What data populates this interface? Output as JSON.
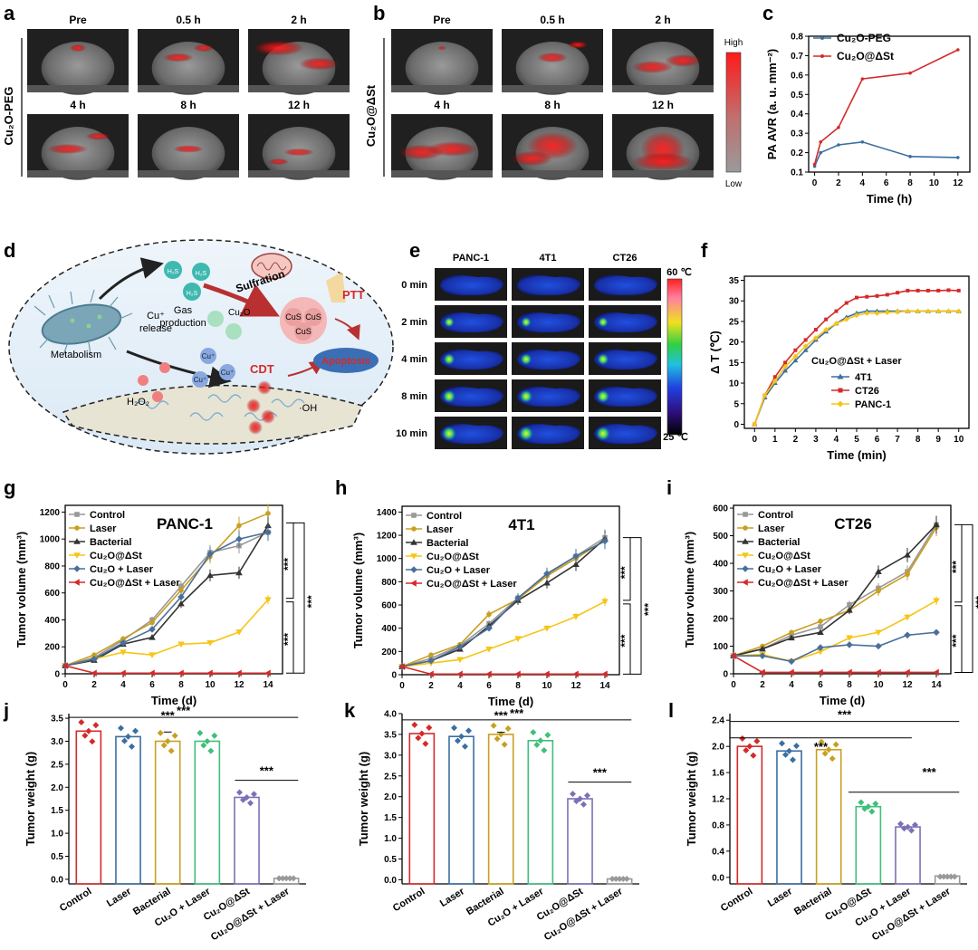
{
  "panels": {
    "a": {
      "letter": "a",
      "row_label": "Cu₂O-PEG",
      "times": [
        "Pre",
        "0.5 h",
        "2 h",
        "4 h",
        "8 h",
        "12 h"
      ]
    },
    "b": {
      "letter": "b",
      "row_label": "Cu₂O@ΔSt",
      "times": [
        "Pre",
        "0.5 h",
        "2 h",
        "4 h",
        "8 h",
        "12 h"
      ]
    },
    "ab_scale": {
      "high": "High",
      "low": "Low"
    },
    "d": {
      "letter": "d",
      "labels": {
        "h2s": "H₂S",
        "gas": "Gas",
        "production": "production",
        "sulfration": "Sulfration",
        "ptt": "PTT",
        "cu2o": "Cu₂O",
        "cus": "CuS",
        "cu_plus": "Cu⁺",
        "cu_release_1": "Cu⁺",
        "cu_release_2": "release",
        "metabolism": "Metabolism",
        "cdt": "CDT",
        "apoptosis": "Apoptosis",
        "h2o2": "H₂O₂",
        "oh": "·OH"
      }
    },
    "e": {
      "letter": "e",
      "columns": [
        "PANC-1",
        "4T1",
        "CT26"
      ],
      "rows": [
        "0 min",
        "2 min",
        "4 min",
        "8 min",
        "10 min"
      ],
      "scale_high": "60 ℃",
      "scale_low": "25 ℃"
    },
    "j": {
      "letter": "j",
      "ylabel": "Tumor weight (g)",
      "sig": [
        "***",
        "***",
        "***"
      ]
    },
    "k": {
      "letter": "k",
      "ylabel": "Tumor weight (g)",
      "sig": [
        "***",
        "***",
        "***"
      ]
    },
    "l": {
      "letter": "l",
      "ylabel": "Tumor weight (g)",
      "sig": [
        "***",
        "***",
        "***"
      ]
    }
  },
  "colors": {
    "red": "#d42a2a",
    "blue": "#3b6fa0",
    "gold": "#c8a020",
    "green": "#3fbf7a",
    "purple": "#7d70b5",
    "grey": "#999999",
    "dark": "#333333",
    "yellow": "#f5c518",
    "steel": "#4a6f9a"
  },
  "chart_data": [
    {
      "id": "c",
      "type": "line",
      "title": "",
      "xlabel": "Time (h)",
      "ylabel": "PA AVR (a. u. mm⁻²)",
      "xlim": [
        -0.5,
        13
      ],
      "ylim": [
        0.1,
        0.8
      ],
      "xticks": [
        0,
        2,
        4,
        6,
        8,
        10,
        12
      ],
      "yticks": [
        0.1,
        0.2,
        0.3,
        0.4,
        0.5,
        0.6,
        0.7,
        0.8
      ],
      "series": [
        {
          "name": "Cu₂O-PEG",
          "color": "#3b6fa0",
          "x": [
            0,
            0.5,
            2,
            4,
            8,
            12
          ],
          "y": [
            0.13,
            0.2,
            0.24,
            0.255,
            0.18,
            0.175
          ]
        },
        {
          "name": "Cu₂O@ΔSt",
          "color": "#d42a2a",
          "x": [
            0,
            0.5,
            2,
            4,
            8,
            12
          ],
          "y": [
            0.14,
            0.255,
            0.33,
            0.58,
            0.61,
            0.73
          ]
        }
      ]
    },
    {
      "id": "f",
      "type": "line",
      "title": "",
      "xlabel": "Time (min)",
      "ylabel": "Δ T (℃)",
      "legend_title": "Cu₂O@ΔSt  + Laser",
      "xlim": [
        -0.5,
        10.5
      ],
      "ylim": [
        -1,
        36
      ],
      "xticks": [
        0,
        1,
        2,
        3,
        4,
        5,
        6,
        7,
        8,
        9,
        10
      ],
      "yticks": [
        0,
        5,
        10,
        15,
        20,
        25,
        30,
        35
      ],
      "x": [
        0,
        0.5,
        1,
        1.5,
        2,
        2.5,
        3,
        3.5,
        4,
        4.5,
        5,
        5.5,
        6,
        6.5,
        7,
        7.5,
        8,
        8.5,
        9,
        9.5,
        10
      ],
      "series": [
        {
          "name": "4T1",
          "color": "#3b6fa0",
          "marker": "triangle",
          "y": [
            0,
            6.5,
            10,
            13,
            15.5,
            18,
            20.5,
            22.5,
            24.5,
            26,
            27,
            27.5,
            27.5,
            27.5,
            27.5,
            27.5,
            27.5,
            27.5,
            27.5,
            27.5,
            27.5
          ]
        },
        {
          "name": "CT26",
          "color": "#d42a2a",
          "marker": "square",
          "y": [
            0,
            7,
            11.5,
            15,
            18,
            20.5,
            23,
            25.5,
            27.5,
            29.5,
            30.8,
            31,
            31.2,
            31.5,
            32,
            32.5,
            32.5,
            32.5,
            32.5,
            32.6,
            32.5
          ]
        },
        {
          "name": "PANC-1",
          "color": "#f5c518",
          "marker": "diamond",
          "y": [
            0,
            7,
            10.5,
            14,
            16.5,
            19,
            21,
            23,
            24.5,
            25.5,
            26.5,
            27,
            27,
            27.2,
            27.3,
            27.5,
            27.5,
            27.5,
            27.5,
            27.5,
            27.5
          ]
        }
      ]
    },
    {
      "id": "g",
      "type": "line",
      "title": "PANC-1",
      "xlabel": "Time (d)",
      "ylabel": "Tumor volume (mm³)",
      "xlim": [
        0,
        15
      ],
      "ylim": [
        0,
        1250
      ],
      "xticks": [
        0,
        2,
        4,
        6,
        8,
        10,
        12,
        14
      ],
      "yticks": [
        0,
        200,
        400,
        600,
        800,
        1000,
        1200
      ],
      "x": [
        0,
        2,
        4,
        6,
        8,
        10,
        12,
        14
      ],
      "sig": [
        "***",
        "***",
        "***"
      ],
      "series": [
        {
          "name": "Control",
          "color": "#999999",
          "marker": "square",
          "y": [
            60,
            120,
            250,
            400,
            650,
            900,
            950,
            1050
          ]
        },
        {
          "name": "Laser",
          "color": "#c8a020",
          "marker": "circle",
          "y": [
            60,
            140,
            260,
            380,
            620,
            870,
            1100,
            1190
          ]
        },
        {
          "name": "Bacterial",
          "color": "#333333",
          "marker": "triangle",
          "y": [
            60,
            100,
            220,
            270,
            520,
            730,
            750,
            1100
          ]
        },
        {
          "name": "Cu₂O@ΔSt",
          "color": "#f5c518",
          "marker": "triangle-down",
          "y": [
            60,
            110,
            160,
            140,
            220,
            230,
            310,
            550
          ]
        },
        {
          "name": "Cu₂O + Laser",
          "color": "#4a6f9a",
          "marker": "diamond",
          "y": [
            60,
            110,
            230,
            330,
            570,
            890,
            1000,
            1050
          ]
        },
        {
          "name": "Cu₂O@ΔSt + Laser",
          "color": "#d42a2a",
          "marker": "triangle-left",
          "y": [
            60,
            5,
            5,
            5,
            5,
            5,
            5,
            5
          ]
        }
      ]
    },
    {
      "id": "h",
      "type": "line",
      "title": "4T1",
      "xlabel": "Time (d)",
      "ylabel": "Tumor volume (mm³)",
      "xlim": [
        0,
        15
      ],
      "ylim": [
        0,
        1450
      ],
      "xticks": [
        0,
        2,
        4,
        6,
        8,
        10,
        12,
        14
      ],
      "yticks": [
        0,
        200,
        400,
        600,
        800,
        1000,
        1200,
        1400
      ],
      "x": [
        0,
        2,
        4,
        6,
        8,
        10,
        12,
        14
      ],
      "sig": [
        "***",
        "***",
        "***"
      ],
      "series": [
        {
          "name": "Control",
          "color": "#999999",
          "marker": "square",
          "y": [
            70,
            140,
            250,
            440,
            660,
            860,
            1020,
            1180
          ]
        },
        {
          "name": "Laser",
          "color": "#c8a020",
          "marker": "circle",
          "y": [
            70,
            170,
            260,
            520,
            650,
            850,
            1000,
            1160
          ]
        },
        {
          "name": "Bacterial",
          "color": "#333333",
          "marker": "triangle",
          "y": [
            70,
            120,
            220,
            420,
            640,
            790,
            950,
            1170
          ]
        },
        {
          "name": "Cu₂O@ΔSt",
          "color": "#f5c518",
          "marker": "triangle-down",
          "y": [
            70,
            100,
            130,
            220,
            310,
            400,
            500,
            630
          ]
        },
        {
          "name": "Cu₂O + Laser",
          "color": "#4a6f9a",
          "marker": "diamond",
          "y": [
            70,
            120,
            240,
            400,
            660,
            870,
            1020,
            1150
          ]
        },
        {
          "name": "Cu₂O@ΔSt + Laser",
          "color": "#d42a2a",
          "marker": "triangle-left",
          "y": [
            70,
            5,
            5,
            5,
            5,
            5,
            5,
            5
          ]
        }
      ]
    },
    {
      "id": "i",
      "type": "line",
      "title": "CT26",
      "xlabel": "Time (d)",
      "ylabel": "Tumor volume (mm³)",
      "xlim": [
        0,
        15
      ],
      "ylim": [
        0,
        610
      ],
      "xticks": [
        0,
        2,
        4,
        6,
        8,
        10,
        12,
        14
      ],
      "yticks": [
        0,
        100,
        200,
        300,
        400,
        500,
        600
      ],
      "x": [
        0,
        2,
        4,
        6,
        8,
        10,
        12,
        14
      ],
      "sig": [
        "***",
        "***",
        "***"
      ],
      "series": [
        {
          "name": "Control",
          "color": "#999999",
          "marker": "square",
          "y": [
            65,
            90,
            140,
            170,
            250,
            310,
            370,
            540
          ]
        },
        {
          "name": "Laser",
          "color": "#c8a020",
          "marker": "circle",
          "y": [
            65,
            100,
            150,
            190,
            230,
            300,
            360,
            530
          ]
        },
        {
          "name": "Bacterial",
          "color": "#333333",
          "marker": "triangle",
          "y": [
            65,
            90,
            130,
            150,
            230,
            370,
            430,
            540
          ]
        },
        {
          "name": "Cu₂O@ΔSt",
          "color": "#f5c518",
          "marker": "triangle-down",
          "y": [
            65,
            70,
            45,
            80,
            130,
            150,
            205,
            265
          ]
        },
        {
          "name": "Cu₂O + Laser",
          "color": "#4a6f9a",
          "marker": "diamond",
          "y": [
            65,
            65,
            45,
            95,
            105,
            100,
            140,
            150
          ]
        },
        {
          "name": "Cu₂O@ΔSt + Laser",
          "color": "#d42a2a",
          "marker": "triangle-left",
          "y": [
            65,
            5,
            5,
            5,
            5,
            5,
            5,
            5
          ]
        }
      ]
    },
    {
      "id": "j",
      "type": "bar",
      "title": "",
      "ylabel": "Tumor weight (g)",
      "categories": [
        "Control",
        "Laser",
        "Bacterial",
        "Cu₂O + Laser",
        "Cu₂O@ΔSt",
        "Cu₂O@ΔSt + Laser"
      ],
      "values": [
        3.22,
        3.1,
        3.0,
        3.0,
        1.78,
        0.02
      ],
      "ylim": [
        -0.1,
        3.6
      ],
      "yticks": [
        0.0,
        0.5,
        1.0,
        1.5,
        2.0,
        2.5,
        3.0,
        3.5
      ]
    },
    {
      "id": "k",
      "type": "bar",
      "title": "",
      "ylabel": "Tumor weight (g)",
      "categories": [
        "Control",
        "Laser",
        "Bacterial",
        "Cu₂O + Laser",
        "Cu₂O@ΔSt",
        "Cu₂O@ΔSt + Laser"
      ],
      "values": [
        3.52,
        3.45,
        3.5,
        3.35,
        1.95,
        0.02
      ],
      "ylim": [
        -0.1,
        4.0
      ],
      "yticks": [
        0.0,
        0.5,
        1.0,
        1.5,
        2.0,
        2.5,
        3.0,
        3.5,
        4.0
      ]
    },
    {
      "id": "l",
      "type": "bar",
      "title": "",
      "ylabel": "Tumor weight (g)",
      "categories": [
        "Control",
        "Laser",
        "Bacterial",
        "Cu₂O@ΔSt",
        "Cu₂O + Laser",
        "Cu₂O@ΔSt + Laser"
      ],
      "values": [
        2.0,
        1.93,
        1.95,
        1.08,
        0.77,
        0.01
      ],
      "ylim": [
        -0.1,
        2.5
      ],
      "yticks": [
        0.0,
        0.4,
        0.8,
        1.2,
        1.6,
        2.0,
        2.4
      ]
    }
  ]
}
